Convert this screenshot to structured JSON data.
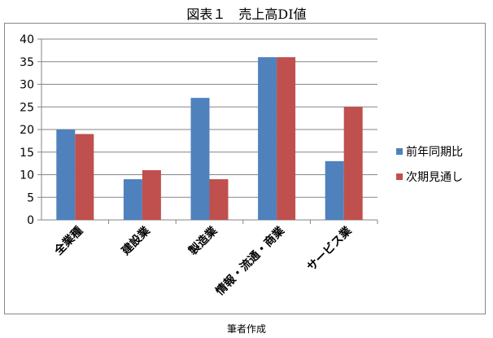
{
  "figure_title": "図表１　売上高DI値",
  "source_note": "筆者作成",
  "chart_data": {
    "type": "bar",
    "title": "",
    "xlabel": "",
    "ylabel": "",
    "categories": [
      "全業種",
      "建設業",
      "製造業",
      "情報・流通・商業",
      "サービス業"
    ],
    "series": [
      {
        "name": "前年同期比",
        "values": [
          20,
          9,
          27,
          36,
          13
        ],
        "color": "#4F81BD"
      },
      {
        "name": "次期見通し",
        "values": [
          19,
          11,
          9,
          36,
          25
        ],
        "color": "#C0504D"
      }
    ],
    "ylim": [
      0,
      40
    ],
    "yticks": [
      0,
      5,
      10,
      15,
      20,
      25,
      30,
      35,
      40
    ],
    "grid": true,
    "legend_position": "right"
  }
}
